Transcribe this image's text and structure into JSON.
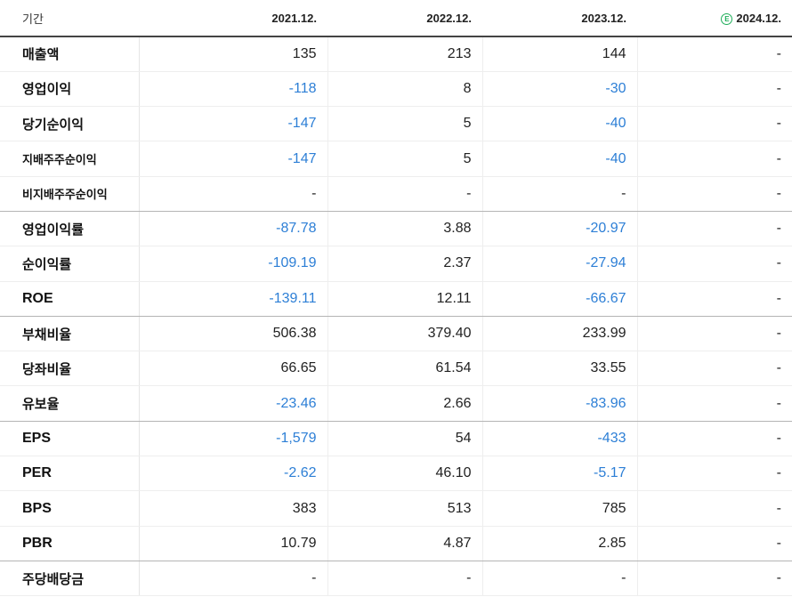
{
  "header": {
    "label": "기간",
    "periods": [
      "2021.12.",
      "2022.12.",
      "2023.12.",
      "2024.12."
    ],
    "estimate_icon_text": "E"
  },
  "colors": {
    "negative": "#2d7fd6",
    "estimate_badge": "#1fae5a"
  },
  "rows": [
    {
      "label": "매출액",
      "values": [
        "135",
        "213",
        "144",
        "-"
      ]
    },
    {
      "label": "영업이익",
      "values": [
        "-118",
        "8",
        "-30",
        "-"
      ]
    },
    {
      "label": "당기순이익",
      "values": [
        "-147",
        "5",
        "-40",
        "-"
      ]
    },
    {
      "label": "지배주주순이익",
      "values": [
        "-147",
        "5",
        "-40",
        "-"
      ]
    },
    {
      "label": "비지배주주순이익",
      "values": [
        "-",
        "-",
        "-",
        "-"
      ]
    },
    {
      "label": "영업이익률",
      "values": [
        "-87.78",
        "3.88",
        "-20.97",
        "-"
      ]
    },
    {
      "label": "순이익률",
      "values": [
        "-109.19",
        "2.37",
        "-27.94",
        "-"
      ]
    },
    {
      "label": "ROE",
      "values": [
        "-139.11",
        "12.11",
        "-66.67",
        "-"
      ]
    },
    {
      "label": "부채비율",
      "values": [
        "506.38",
        "379.40",
        "233.99",
        "-"
      ]
    },
    {
      "label": "당좌비율",
      "values": [
        "66.65",
        "61.54",
        "33.55",
        "-"
      ]
    },
    {
      "label": "유보율",
      "values": [
        "-23.46",
        "2.66",
        "-83.96",
        "-"
      ]
    },
    {
      "label": "EPS",
      "values": [
        "-1,579",
        "54",
        "-433",
        "-"
      ]
    },
    {
      "label": "PER",
      "values": [
        "-2.62",
        "46.10",
        "-5.17",
        "-"
      ]
    },
    {
      "label": "BPS",
      "values": [
        "383",
        "513",
        "785",
        "-"
      ]
    },
    {
      "label": "PBR",
      "values": [
        "10.79",
        "4.87",
        "2.85",
        "-"
      ]
    },
    {
      "label": "주당배당금",
      "values": [
        "-",
        "-",
        "-",
        "-"
      ]
    }
  ]
}
